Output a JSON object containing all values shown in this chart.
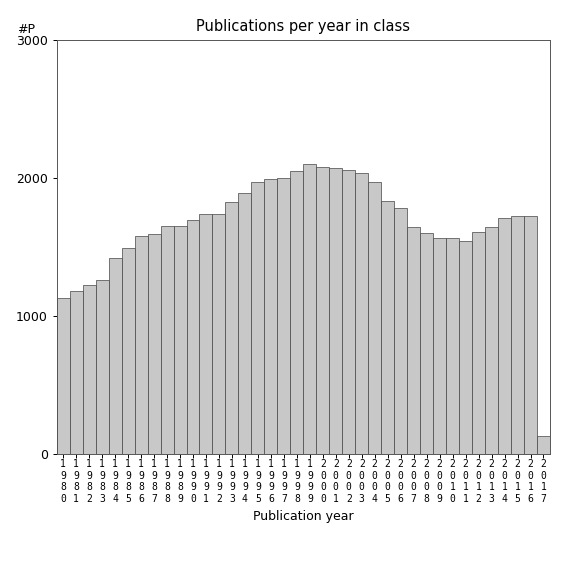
{
  "title": "Publications per year in class",
  "xlabel": "Publication year",
  "ylabel": "#P",
  "ylim": [
    0,
    3000
  ],
  "yticks": [
    0,
    1000,
    2000,
    3000
  ],
  "bar_color": "#c8c8c8",
  "bar_edgecolor": "#444444",
  "background_color": "#ffffff",
  "years": [
    1980,
    1981,
    1982,
    1983,
    1984,
    1985,
    1986,
    1987,
    1988,
    1989,
    1990,
    1991,
    1992,
    1993,
    1994,
    1995,
    1996,
    1997,
    1998,
    1999,
    2000,
    2001,
    2002,
    2003,
    2004,
    2005,
    2006,
    2007,
    2008,
    2009,
    2010,
    2011,
    2012,
    2013,
    2014,
    2015,
    2016,
    2017
  ],
  "values": [
    1130,
    1175,
    1220,
    1255,
    1420,
    1490,
    1580,
    1590,
    1650,
    1650,
    1690,
    1740,
    1740,
    1820,
    1890,
    1970,
    1990,
    2000,
    2050,
    2100,
    2080,
    2070,
    2055,
    2035,
    1970,
    1830,
    1780,
    1640,
    1600,
    1565,
    1560,
    1540,
    1605,
    1645,
    1705,
    1720,
    1720,
    130
  ]
}
